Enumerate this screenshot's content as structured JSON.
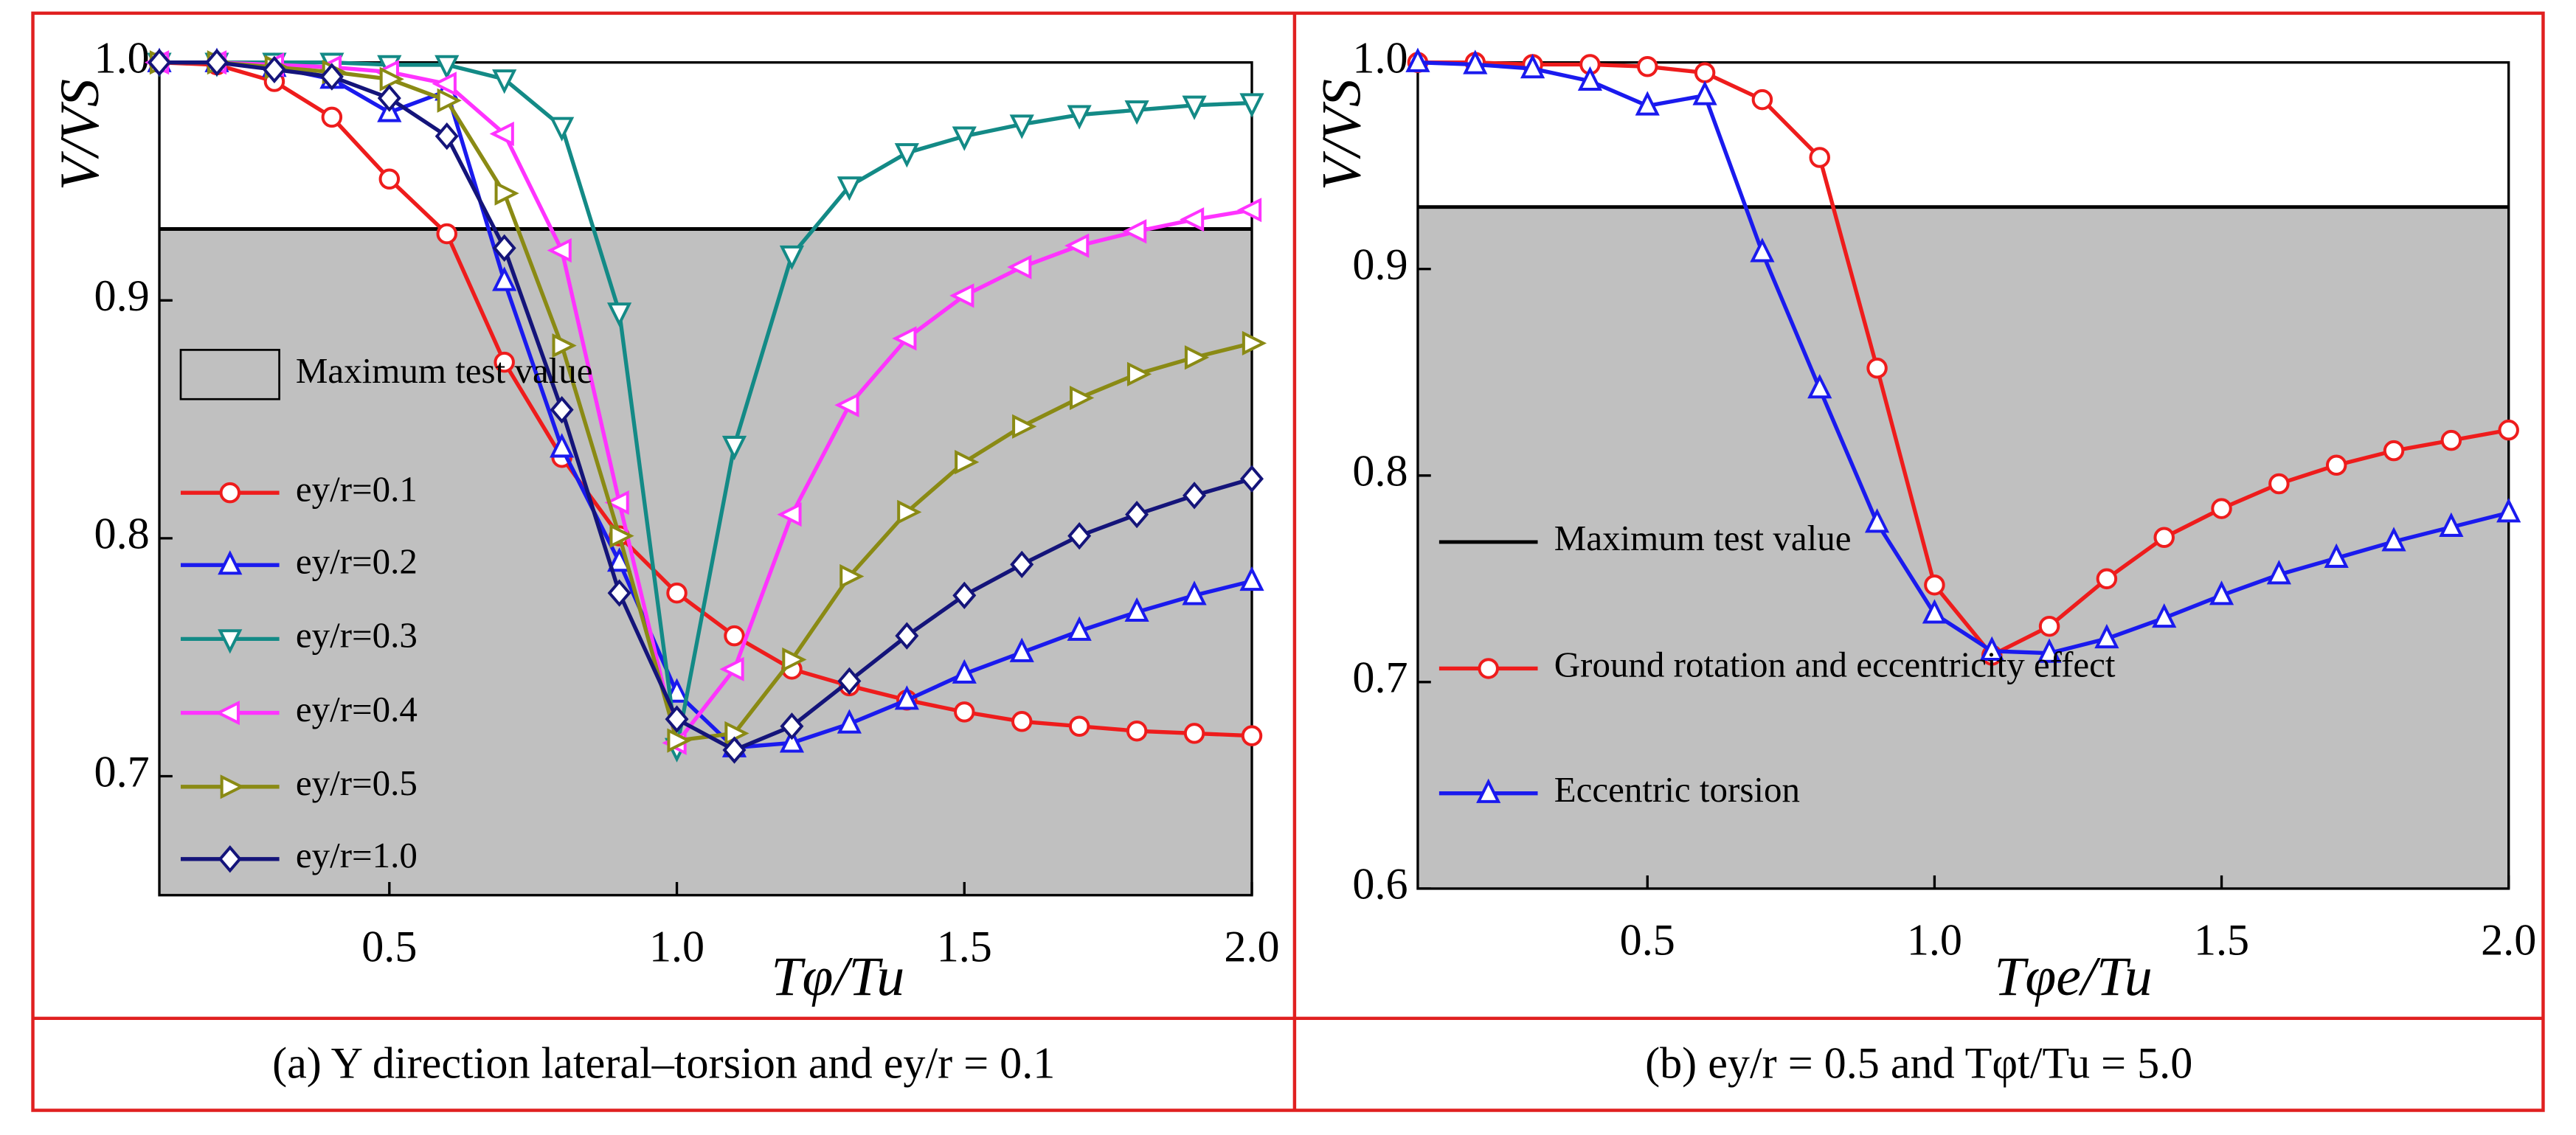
{
  "chart_data": [
    {
      "type": "line",
      "caption": "(a) Y direction lateral–torsion and ey/r = 0.1",
      "x_label": "Tφ/Tu",
      "y_label": "V/VS",
      "xlim": [
        0.1,
        2.0
      ],
      "ylim": [
        0.65,
        1.0
      ],
      "xticks": [
        0.5,
        {
          "value": 1,
          "label": "1.0"
        },
        1.5,
        {
          "value": 2,
          "label": "2.0"
        }
      ],
      "yticks": [
        0.7,
        0.8,
        0.9,
        {
          "value": 1,
          "label": "1.0"
        }
      ],
      "threshold": 0.93,
      "threshold_label": "Maximum test value",
      "threshold_legend": "box",
      "x": [
        0.1,
        0.2,
        0.3,
        0.4,
        0.5,
        0.6,
        0.7,
        0.8,
        0.9,
        1.0,
        1.1,
        1.2,
        1.3,
        1.4,
        1.5,
        1.6,
        1.7,
        1.8,
        1.9,
        2.0
      ],
      "series": [
        {
          "name": "ey/r=0.1",
          "color": "#ee1c1c",
          "marker": "circle",
          "values": [
            1.0,
            0.999,
            0.992,
            0.977,
            0.951,
            0.928,
            0.874,
            0.834,
            0.801,
            0.777,
            0.759,
            0.745,
            0.738,
            0.732,
            0.727,
            0.723,
            0.721,
            0.719,
            0.718,
            0.717
          ]
        },
        {
          "name": "ey/r=0.2",
          "color": "#1a1aee",
          "marker": "triangle-up",
          "values": [
            1.0,
            1.0,
            0.998,
            0.993,
            0.979,
            0.988,
            0.908,
            0.838,
            0.79,
            0.735,
            0.712,
            0.714,
            0.722,
            0.732,
            0.743,
            0.752,
            0.761,
            0.769,
            0.776,
            0.782
          ]
        },
        {
          "name": "ey/r=0.3",
          "color": "#138a86",
          "marker": "triangle-down",
          "values": [
            1.0,
            1.0,
            1.0,
            1.0,
            0.999,
            0.999,
            0.993,
            0.973,
            0.895,
            0.712,
            0.839,
            0.919,
            0.948,
            0.962,
            0.969,
            0.974,
            0.978,
            0.98,
            0.982,
            0.983
          ]
        },
        {
          "name": "ey/r=0.4",
          "color": "#ff33ff",
          "marker": "triangle-left",
          "values": [
            1.0,
            1.0,
            0.999,
            0.998,
            0.996,
            0.991,
            0.97,
            0.921,
            0.815,
            0.714,
            0.745,
            0.81,
            0.856,
            0.884,
            0.902,
            0.914,
            0.923,
            0.929,
            0.934,
            0.938
          ]
        },
        {
          "name": "ey/r=0.5",
          "color": "#8a8a14",
          "marker": "triangle-right",
          "values": [
            1.0,
            1.0,
            0.998,
            0.996,
            0.993,
            0.984,
            0.945,
            0.881,
            0.801,
            0.715,
            0.718,
            0.749,
            0.784,
            0.811,
            0.832,
            0.847,
            0.859,
            0.869,
            0.876,
            0.882
          ]
        },
        {
          "name": "ey/r=1.0",
          "color": "#14147a",
          "marker": "diamond",
          "values": [
            1.0,
            1.0,
            0.997,
            0.994,
            0.985,
            0.969,
            0.922,
            0.854,
            0.777,
            0.724,
            0.711,
            0.721,
            0.74,
            0.759,
            0.776,
            0.789,
            0.801,
            0.81,
            0.818,
            0.825
          ]
        }
      ]
    },
    {
      "type": "line",
      "caption": "(b) ey/r = 0.5 and Tφt/Tu = 5.0",
      "x_label": "Tφe/Tu",
      "y_label": "V/VS",
      "xlim": [
        0.1,
        2.0
      ],
      "ylim": [
        0.6,
        1.0
      ],
      "xticks": [
        0.5,
        {
          "value": 1,
          "label": "1.0"
        },
        1.5,
        {
          "value": 2,
          "label": "2.0"
        }
      ],
      "yticks": [
        0.6,
        0.7,
        0.8,
        0.9,
        {
          "value": 1,
          "label": "1.0"
        }
      ],
      "threshold": 0.93,
      "threshold_label": "Maximum test value",
      "threshold_legend": "line",
      "x": [
        0.1,
        0.2,
        0.3,
        0.4,
        0.5,
        0.6,
        0.7,
        0.8,
        0.9,
        1.0,
        1.1,
        1.2,
        1.3,
        1.4,
        1.5,
        1.6,
        1.7,
        1.8,
        1.9,
        2.0
      ],
      "series": [
        {
          "name": "Ground rotation and eccentricity effect",
          "color": "#ee1c1c",
          "marker": "circle",
          "values": [
            1.0,
            1.0,
            0.999,
            0.999,
            0.998,
            0.995,
            0.982,
            0.954,
            0.852,
            0.747,
            0.713,
            0.727,
            0.75,
            0.77,
            0.784,
            0.796,
            0.805,
            0.812,
            0.817,
            0.822
          ]
        },
        {
          "name": "Eccentric torsion",
          "color": "#1a1aee",
          "marker": "triangle-up",
          "values": [
            1.0,
            0.999,
            0.997,
            0.991,
            0.979,
            0.984,
            0.908,
            0.842,
            0.777,
            0.733,
            0.715,
            0.714,
            0.721,
            0.731,
            0.742,
            0.752,
            0.76,
            0.768,
            0.775,
            0.782
          ]
        }
      ]
    }
  ]
}
